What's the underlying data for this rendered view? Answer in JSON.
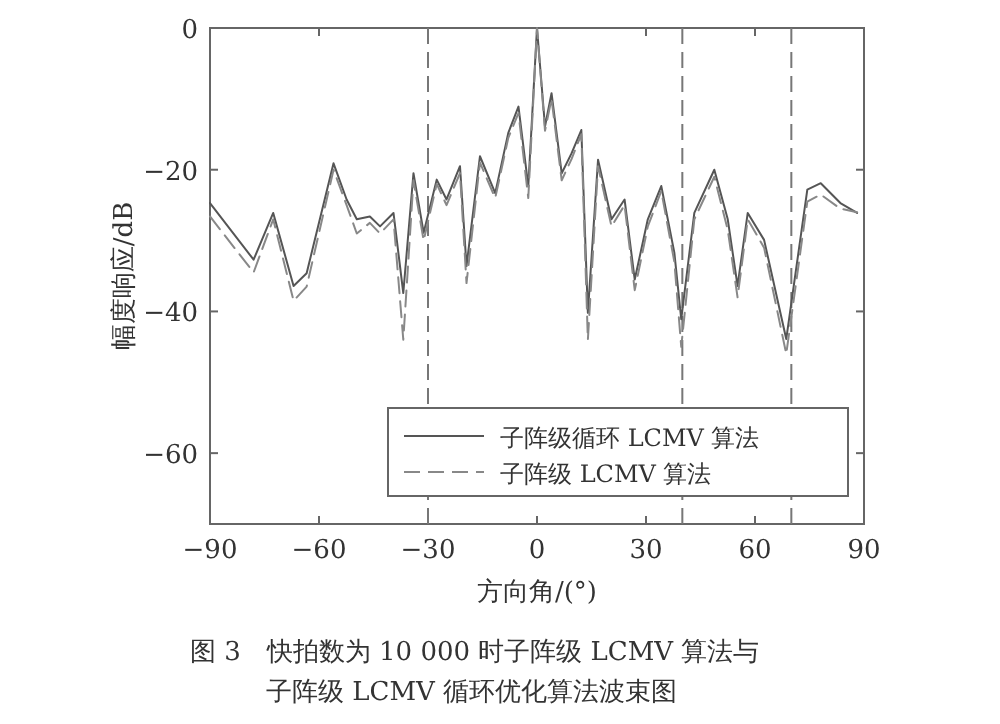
{
  "chart_data": {
    "type": "line",
    "xlabel": "方向角/(°)",
    "ylabel": "幅度响应/dB",
    "x": [
      -90,
      -78,
      -72.6,
      -67,
      -63.4,
      -56,
      -52.4,
      -49.6,
      -46,
      -43.2,
      -39.5,
      -36.8,
      -34,
      -31.2,
      -27.6,
      -24.9,
      -21.2,
      -19.4,
      -15.7,
      -11.5,
      -7.9,
      -5.1,
      -2.4,
      0,
      2.2,
      4,
      6.8,
      9.5,
      12.2,
      14,
      16.8,
      20.5,
      24.1,
      26.9,
      30.5,
      34.2,
      37.8,
      39.7,
      43.3,
      48.8,
      52.5,
      55.2,
      58,
      62.5,
      68.6,
      74.4,
      78.1,
      83.5,
      88.1
    ],
    "series": [
      {
        "name": "子阵级循环 LCMV 算法",
        "color": "#555555",
        "line_style": "solid",
        "values": [
          -24.7,
          -32.7,
          -26.1,
          -36.4,
          -34.6,
          -19.1,
          -24.2,
          -27,
          -26.6,
          -28,
          -26.1,
          -37.4,
          -20.5,
          -28.9,
          -21.4,
          -24.2,
          -19.5,
          -33.6,
          -18.1,
          -23.3,
          -14.8,
          -11.1,
          -22.3,
          0,
          -13.9,
          -9.2,
          -20.5,
          -17.7,
          -14.4,
          -40.2,
          -18.6,
          -27,
          -24.2,
          -35.5,
          -27,
          -22.3,
          -31.7,
          -41.1,
          -26.1,
          -20,
          -27,
          -36.4,
          -26.1,
          -29.9,
          -43.9,
          -22.8,
          -21.9,
          -24.7,
          -26.1
        ]
      },
      {
        "name": "子阵级 LCMV 算法",
        "color": "#888888",
        "line_style": "dashed",
        "values": [
          -26.6,
          -34.5,
          -27,
          -38.5,
          -36.5,
          -20,
          -25,
          -29,
          -27.5,
          -29,
          -27,
          -44,
          -21.5,
          -30,
          -22,
          -25,
          -20.5,
          -36,
          -19,
          -24,
          -15.5,
          -12,
          -24,
          0,
          -14.5,
          -10,
          -21.5,
          -18.5,
          -15,
          -44,
          -19.5,
          -28,
          -25,
          -37,
          -28,
          -23,
          -33,
          -45,
          -27,
          -21,
          -28.5,
          -38,
          -27,
          -31,
          -46,
          -24.5,
          -23.5,
          -25.5,
          -26
        ]
      }
    ],
    "xlim": [
      -90,
      90
    ],
    "xticks": [
      -90,
      -60,
      -30,
      0,
      30,
      60,
      90
    ],
    "ylim": [
      -70,
      0
    ],
    "yticks": [
      -60,
      -40,
      -20,
      0
    ],
    "ref_lines": [
      {
        "axis": "x",
        "value": -30,
        "color": "#777777",
        "line_style": "dashed"
      },
      {
        "axis": "x",
        "value": 40,
        "color": "#777777",
        "line_style": "dashed"
      },
      {
        "axis": "x",
        "value": 70,
        "color": "#777777",
        "line_style": "dashed"
      }
    ],
    "legend": "bottom right",
    "grid": false,
    "annotations": [
      "图 3　快拍数为 10 000 时子阵级 LCMV 算法与",
      "子阵级 LCMV 循环优化算法波束图"
    ]
  }
}
